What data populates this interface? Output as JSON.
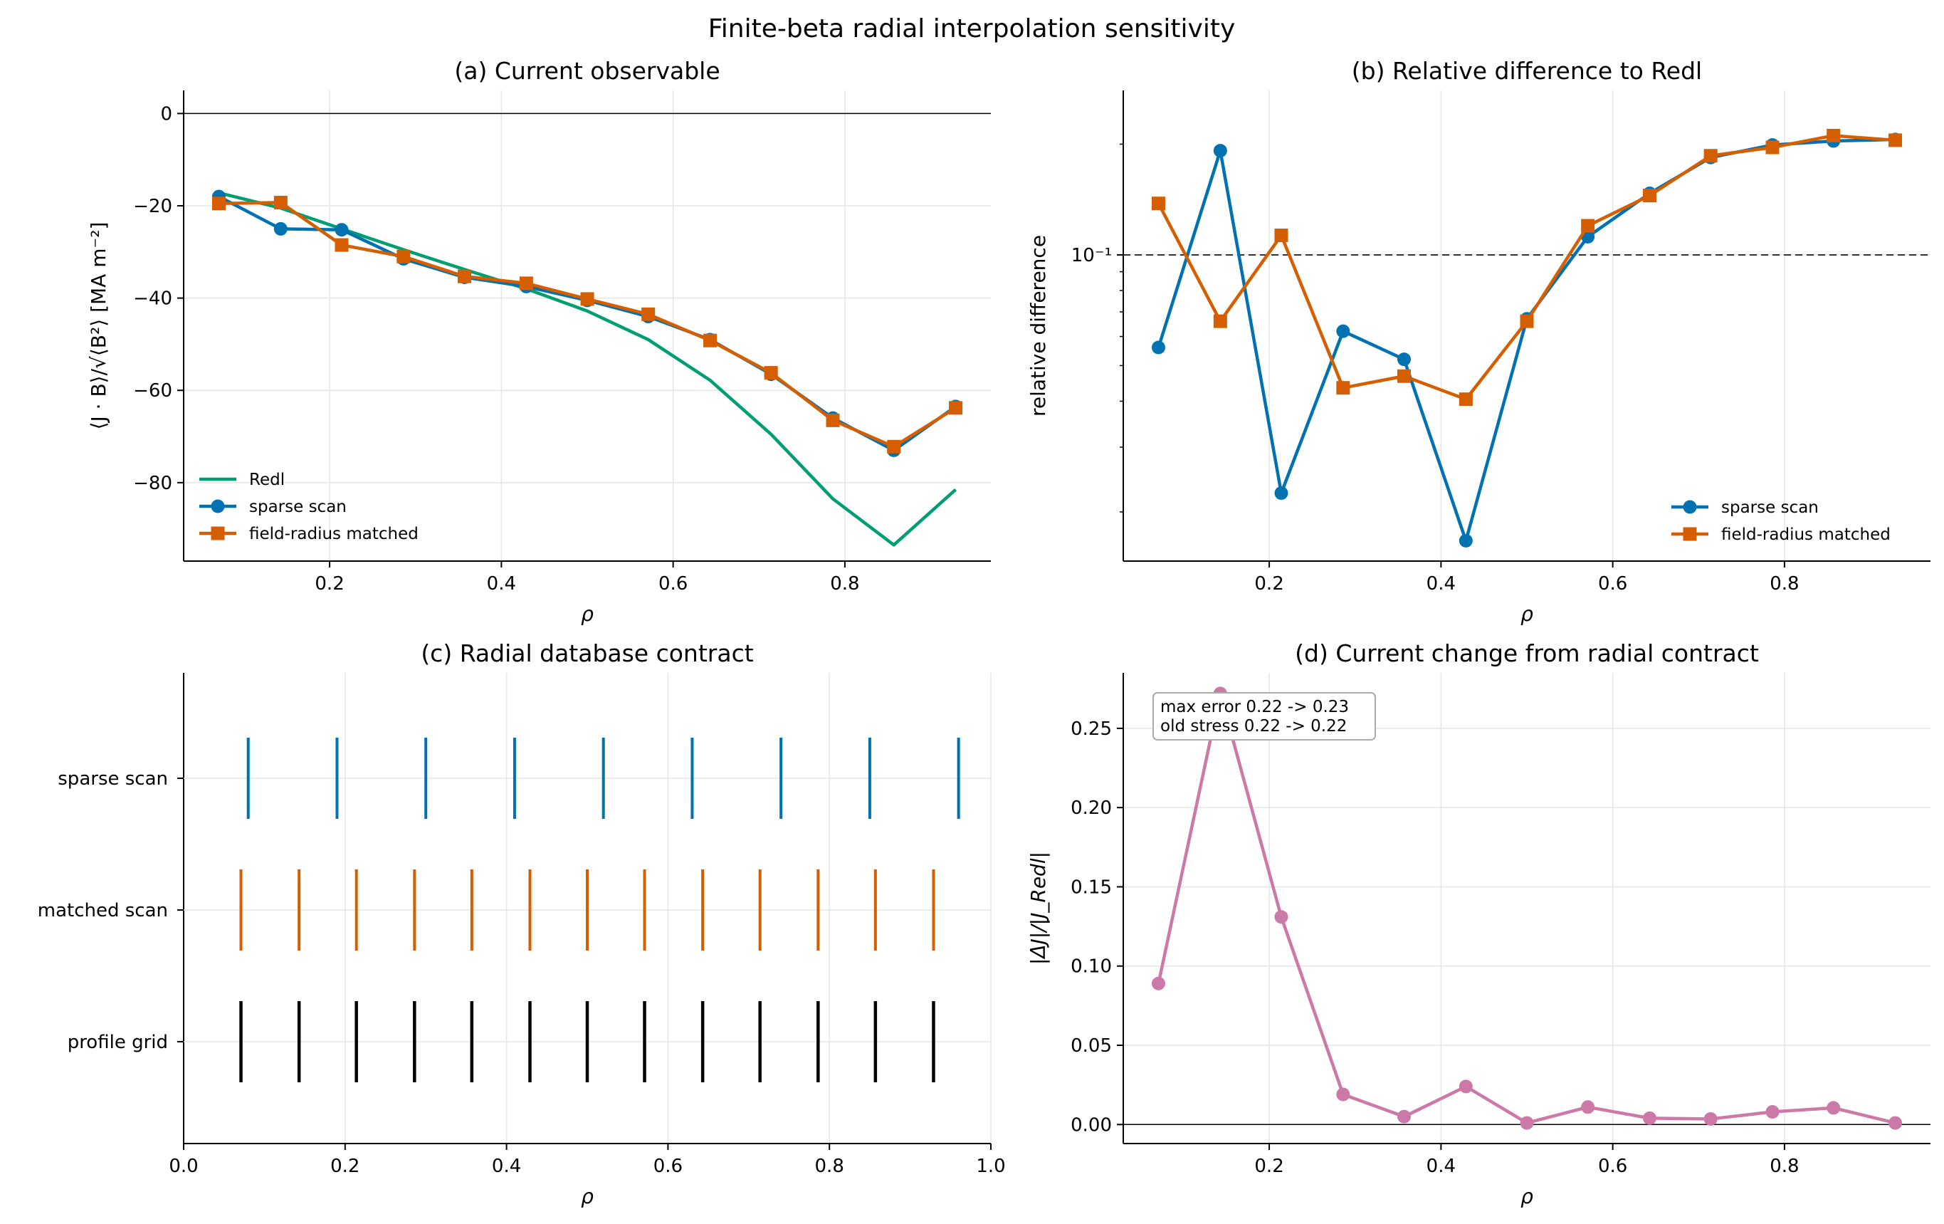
{
  "figure": {
    "suptitle": "Finite-beta radial interpolation sensitivity",
    "colors": {
      "redl": "#009e73",
      "sparse": "#0072b2",
      "matched": "#d55e00",
      "profile": "#000000",
      "delta": "#cc79a7"
    }
  },
  "chart_data": [
    {
      "id": "a",
      "type": "line",
      "title": "(a) Current observable",
      "xlabel": "ρ",
      "ylabel": "⟨J · B⟩/√⟨B²⟩ [MA m⁻²]",
      "xlim": [
        0.03,
        0.97
      ],
      "ylim": [
        -97,
        5
      ],
      "xticks": [
        0.2,
        0.4,
        0.6,
        0.8
      ],
      "xticklabels": [
        "0.2",
        "0.4",
        "0.6",
        "0.8"
      ],
      "yticks": [
        0,
        -20,
        -40,
        -60,
        -80
      ],
      "yticklabels": [
        "0",
        "−20",
        "−40",
        "−60",
        "−80"
      ],
      "hline": 0,
      "grid": true,
      "legend_position": "lower-left",
      "x": [
        0.071,
        0.143,
        0.214,
        0.286,
        0.357,
        0.429,
        0.5,
        0.571,
        0.643,
        0.714,
        0.786,
        0.857,
        0.929
      ],
      "series": [
        {
          "name": "Redl",
          "marker": "none",
          "color_key": "redl",
          "values": [
            -17.2,
            -20.5,
            -25.0,
            -29.5,
            -33.8,
            -38.0,
            -42.8,
            -49.0,
            -57.8,
            -69.5,
            -83.5,
            -93.5,
            -81.5
          ]
        },
        {
          "name": "sparse scan",
          "marker": "circle",
          "color_key": "sparse",
          "values": [
            -18.0,
            -25.0,
            -25.2,
            -31.5,
            -35.5,
            -37.5,
            -40.5,
            -44.0,
            -49.0,
            -56.5,
            -66.0,
            -73.0,
            -63.5
          ]
        },
        {
          "name": "field-radius matched",
          "marker": "square",
          "color_key": "matched",
          "values": [
            -19.5,
            -19.3,
            -28.5,
            -31.0,
            -35.3,
            -36.8,
            -40.2,
            -43.5,
            -49.2,
            -56.2,
            -66.5,
            -72.2,
            -63.8
          ]
        }
      ]
    },
    {
      "id": "b",
      "type": "line",
      "title": "(b) Relative difference to Redl",
      "xlabel": "ρ",
      "ylabel": "relative difference",
      "yscale": "log",
      "xlim": [
        0.03,
        0.97
      ],
      "ylim": [
        0.0147,
        0.28
      ],
      "xticks": [
        0.2,
        0.4,
        0.6,
        0.8
      ],
      "xticklabels": [
        "0.2",
        "0.4",
        "0.6",
        "0.8"
      ],
      "yticks": [
        0.1
      ],
      "yticklabels": [
        "10⁻¹"
      ],
      "yminor": [
        0.02,
        0.03,
        0.04,
        0.05,
        0.06,
        0.07,
        0.08,
        0.09,
        0.2
      ],
      "hline": 0.1,
      "grid": true,
      "legend_position": "lower-right",
      "x": [
        0.071,
        0.143,
        0.214,
        0.286,
        0.357,
        0.429,
        0.5,
        0.571,
        0.643,
        0.714,
        0.786,
        0.857,
        0.929
      ],
      "series": [
        {
          "name": "sparse scan",
          "marker": "circle",
          "color_key": "sparse",
          "values": [
            0.056,
            0.192,
            0.0225,
            0.062,
            0.052,
            0.0167,
            0.067,
            0.112,
            0.147,
            0.184,
            0.199,
            0.204,
            0.206
          ]
        },
        {
          "name": "field-radius matched",
          "marker": "square",
          "color_key": "matched",
          "values": [
            0.138,
            0.066,
            0.113,
            0.0435,
            0.0468,
            0.0405,
            0.066,
            0.12,
            0.145,
            0.186,
            0.196,
            0.211,
            0.205
          ]
        }
      ]
    },
    {
      "id": "c",
      "type": "eventplot",
      "title": "(c) Radial database contract",
      "xlabel": "ρ",
      "xlim": [
        0.0,
        1.0
      ],
      "xticks": [
        0.0,
        0.2,
        0.4,
        0.6,
        0.8,
        1.0
      ],
      "xticklabels": [
        "0.0",
        "0.2",
        "0.4",
        "0.6",
        "0.8",
        "1.0"
      ],
      "grid": true,
      "rows": [
        {
          "name": "sparse scan",
          "color_key": "sparse",
          "positions": [
            0.08,
            0.19,
            0.3,
            0.41,
            0.52,
            0.63,
            0.74,
            0.85,
            0.96
          ]
        },
        {
          "name": "matched scan",
          "color_key": "matched",
          "positions": [
            0.071,
            0.143,
            0.214,
            0.286,
            0.357,
            0.429,
            0.5,
            0.571,
            0.643,
            0.714,
            0.786,
            0.857,
            0.929
          ]
        },
        {
          "name": "profile grid",
          "color_key": "profile",
          "positions": [
            0.071,
            0.143,
            0.214,
            0.286,
            0.357,
            0.429,
            0.5,
            0.571,
            0.643,
            0.714,
            0.786,
            0.857,
            0.929
          ]
        }
      ]
    },
    {
      "id": "d",
      "type": "line",
      "title": "(d) Current change from radial contract",
      "xlabel": "ρ",
      "ylabel": "|ΔJ|/|J_Redl|",
      "xlim": [
        0.03,
        0.97
      ],
      "ylim": [
        -0.012,
        0.285
      ],
      "xticks": [
        0.2,
        0.4,
        0.6,
        0.8
      ],
      "xticklabels": [
        "0.2",
        "0.4",
        "0.6",
        "0.8"
      ],
      "yticks": [
        0.0,
        0.05,
        0.1,
        0.15,
        0.2,
        0.25
      ],
      "yticklabels": [
        "0.00",
        "0.05",
        "0.10",
        "0.15",
        "0.20",
        "0.25"
      ],
      "hline": 0,
      "grid": true,
      "annotation": [
        "max error 0.22 -> 0.23",
        "old stress 0.22 -> 0.22"
      ],
      "x": [
        0.071,
        0.143,
        0.214,
        0.286,
        0.357,
        0.429,
        0.5,
        0.571,
        0.643,
        0.714,
        0.786,
        0.857,
        0.929
      ],
      "series": [
        {
          "name": "",
          "marker": "circle",
          "color_key": "delta",
          "values": [
            0.089,
            0.272,
            0.131,
            0.019,
            0.005,
            0.024,
            0.001,
            0.011,
            0.004,
            0.0035,
            0.008,
            0.0105,
            0.001
          ]
        }
      ]
    }
  ]
}
